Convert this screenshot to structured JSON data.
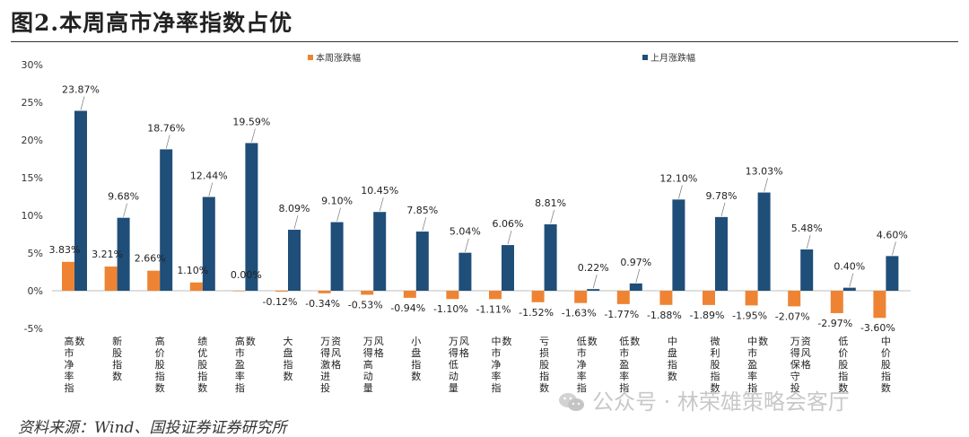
{
  "title": "图2.本周高市净率指数占优",
  "source": "资料来源：Wind、国投证券证券研究所",
  "watermark": "公众号 · 林荣雄策略会客厅",
  "colors": {
    "this_week": "#ee8433",
    "last_month": "#1f4e79"
  },
  "chart_data": {
    "type": "bar",
    "categories": [
      "高市净率指数",
      "新股指数",
      "高价股指数",
      "绩优股指数",
      "高市盈率指数",
      "大盘指数",
      "万得激进投资风格",
      "万得高动量风格",
      "小盘指数",
      "万得低动量风格",
      "中市净率指数",
      "亏损股指数",
      "低市净率指数",
      "低市盈率指数",
      "中盘指数",
      "微利股指数",
      "中市盈率指数",
      "万得保守投资风格",
      "低价股指数",
      "中价股指数"
    ],
    "series": [
      {
        "name": "本周涨跌幅",
        "values": [
          3.83,
          3.21,
          2.66,
          1.1,
          0.0,
          -0.12,
          -0.34,
          -0.53,
          -0.94,
          -1.1,
          -1.11,
          -1.52,
          -1.63,
          -1.77,
          -1.88,
          -1.89,
          -1.95,
          -2.07,
          -2.97,
          -3.6
        ]
      },
      {
        "name": "上月涨跌幅",
        "values": [
          23.87,
          9.68,
          18.76,
          12.44,
          19.59,
          8.09,
          9.1,
          10.45,
          7.85,
          5.04,
          6.06,
          8.81,
          0.22,
          0.97,
          12.1,
          9.78,
          13.03,
          5.48,
          0.4,
          4.6
        ]
      }
    ],
    "labels_this_week": [
      "3.83%",
      "3.21%",
      "2.66%",
      "1.10%",
      "0.00%",
      "-0.12%",
      "-0.34%",
      "-0.53%",
      "-0.94%",
      "-1.10%",
      "-1.11%",
      "-1.52%",
      "-1.63%",
      "-1.77%",
      "-1.88%",
      "-1.89%",
      "-1.95%",
      "-2.07%",
      "-2.97%",
      "-3.60%"
    ],
    "labels_last_month": [
      "23.87%",
      "9.68%",
      "18.76%",
      "12.44%",
      "19.59%",
      "8.09%",
      "9.10%",
      "10.45%",
      "7.85%",
      "5.04%",
      "6.06%",
      "8.81%",
      "0.22%",
      "0.97%",
      "12.10%",
      "9.78%",
      "13.03%",
      "5.48%",
      "0.40%",
      "4.60%"
    ],
    "y_ticks": [
      30,
      25,
      20,
      15,
      10,
      5,
      0,
      -5
    ],
    "y_tick_labels": [
      "30%",
      "25%",
      "20%",
      "15%",
      "10%",
      "5%",
      "0%",
      "-5%"
    ],
    "ylim": [
      -5,
      30
    ],
    "grid": false,
    "legend_position": "top"
  }
}
